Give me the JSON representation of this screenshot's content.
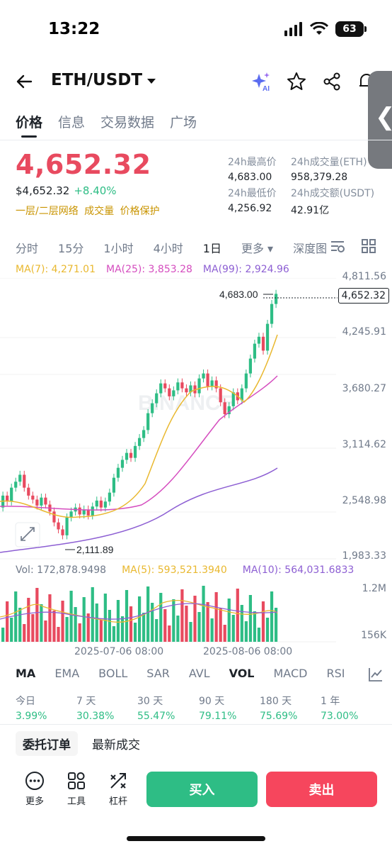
{
  "status": {
    "time": "13:22",
    "battery": "63"
  },
  "header": {
    "pair": "ETH/USDT",
    "ai_label": "AI"
  },
  "tabs": [
    "价格",
    "信息",
    "交易数据",
    "广场"
  ],
  "price": {
    "last": "4,652.32",
    "usd": "$4,652.32",
    "change": "+8.40%",
    "tags": [
      "一层/二层网络",
      "成交量",
      "价格保护"
    ]
  },
  "stats": {
    "high_label": "24h最高价",
    "high": "4,683.00",
    "low_label": "24h最低价",
    "low": "4,256.92",
    "vol_eth_label": "24h成交量(ETH)",
    "vol_eth": "958,379.28",
    "vol_usdt_label": "24h成交额(USDT)",
    "vol_usdt": "42.91亿"
  },
  "intervals": [
    "分时",
    "15分",
    "1小时",
    "4小时",
    "1日",
    "更多",
    "深度图"
  ],
  "ma": {
    "ma7": "MA(7): 4,271.01",
    "ma25": "MA(25): 3,853.28",
    "ma99": "MA(99): 2,924.96"
  },
  "colors": {
    "up": "#2ebd85",
    "down": "#e84a5f",
    "ma7": "#e9b82f",
    "ma25": "#d54dbf",
    "ma99": "#8d5fd3"
  },
  "chart_data": {
    "type": "candlestick",
    "y_axis_labels": [
      "4,811.56",
      "4,245.91",
      "3,680.27",
      "3,114.62",
      "2,548.98",
      "1,983.33"
    ],
    "ylim": [
      1983.33,
      4811.56
    ],
    "current_price": "4,652.32",
    "high_marker": "4,683.00",
    "low_marker": "2,111.89",
    "watermark": "BINANCE",
    "candles": [
      [
        2500,
        2620
      ],
      [
        2620,
        2560
      ],
      [
        2560,
        2700
      ],
      [
        2700,
        2760
      ],
      [
        2760,
        2830
      ],
      [
        2830,
        2700
      ],
      [
        2700,
        2620
      ],
      [
        2620,
        2580
      ],
      [
        2580,
        2520
      ],
      [
        2520,
        2600
      ],
      [
        2600,
        2530
      ],
      [
        2530,
        2460
      ],
      [
        2460,
        2350
      ],
      [
        2350,
        2280
      ],
      [
        2280,
        2220
      ],
      [
        2220,
        2400
      ],
      [
        2400,
        2460
      ],
      [
        2460,
        2500
      ],
      [
        2500,
        2430
      ],
      [
        2430,
        2480
      ],
      [
        2480,
        2420
      ],
      [
        2420,
        2510
      ],
      [
        2510,
        2570
      ],
      [
        2570,
        2500
      ],
      [
        2500,
        2560
      ],
      [
        2560,
        2650
      ],
      [
        2650,
        2800
      ],
      [
        2800,
        2900
      ],
      [
        2900,
        2980
      ],
      [
        2980,
        3050
      ],
      [
        3050,
        3000
      ],
      [
        3000,
        3120
      ],
      [
        3120,
        3200
      ],
      [
        3200,
        3280
      ],
      [
        3280,
        3450
      ],
      [
        3450,
        3550
      ],
      [
        3550,
        3650
      ],
      [
        3650,
        3750
      ],
      [
        3750,
        3700
      ],
      [
        3700,
        3620
      ],
      [
        3620,
        3680
      ],
      [
        3680,
        3760
      ],
      [
        3760,
        3700
      ],
      [
        3700,
        3660
      ],
      [
        3660,
        3730
      ],
      [
        3730,
        3650
      ],
      [
        3650,
        3800
      ],
      [
        3800,
        3850
      ],
      [
        3850,
        3720
      ],
      [
        3720,
        3780
      ],
      [
        3780,
        3700
      ],
      [
        3700,
        3560
      ],
      [
        3560,
        3440
      ],
      [
        3440,
        3520
      ],
      [
        3520,
        3660
      ],
      [
        3660,
        3580
      ],
      [
        3580,
        3700
      ],
      [
        3700,
        3850
      ],
      [
        3850,
        4000
      ],
      [
        4000,
        4150
      ],
      [
        4150,
        4220
      ],
      [
        4220,
        4080
      ],
      [
        4080,
        4350
      ],
      [
        4350,
        4550
      ],
      [
        4550,
        4652
      ]
    ]
  },
  "volume": {
    "vol": "Vol: 172,878.9498",
    "ma5": "MA(5): 593,521.3940",
    "ma10": "MA(10): 564,031.6833",
    "axis": [
      "1.2M",
      "156K"
    ]
  },
  "dates": [
    "2025-07-06 08:00",
    "2025-08-06 08:00"
  ],
  "indicators": [
    "MA",
    "EMA",
    "BOLL",
    "SAR",
    "AVL",
    "VOL",
    "MACD",
    "RSI"
  ],
  "performance": [
    {
      "label": "今日",
      "value": "3.99%"
    },
    {
      "label": "7 天",
      "value": "30.38%"
    },
    {
      "label": "30 天",
      "value": "55.47%"
    },
    {
      "label": "90 天",
      "value": "79.11%"
    },
    {
      "label": "180 天",
      "value": "75.69%"
    },
    {
      "label": "1 年",
      "value": "73.00%"
    }
  ],
  "order_tabs": [
    "委托订单",
    "最新成交"
  ],
  "bottom": {
    "more": "更多",
    "tools": "工具",
    "leverage": "杠杆",
    "buy": "买入",
    "sell": "卖出"
  }
}
